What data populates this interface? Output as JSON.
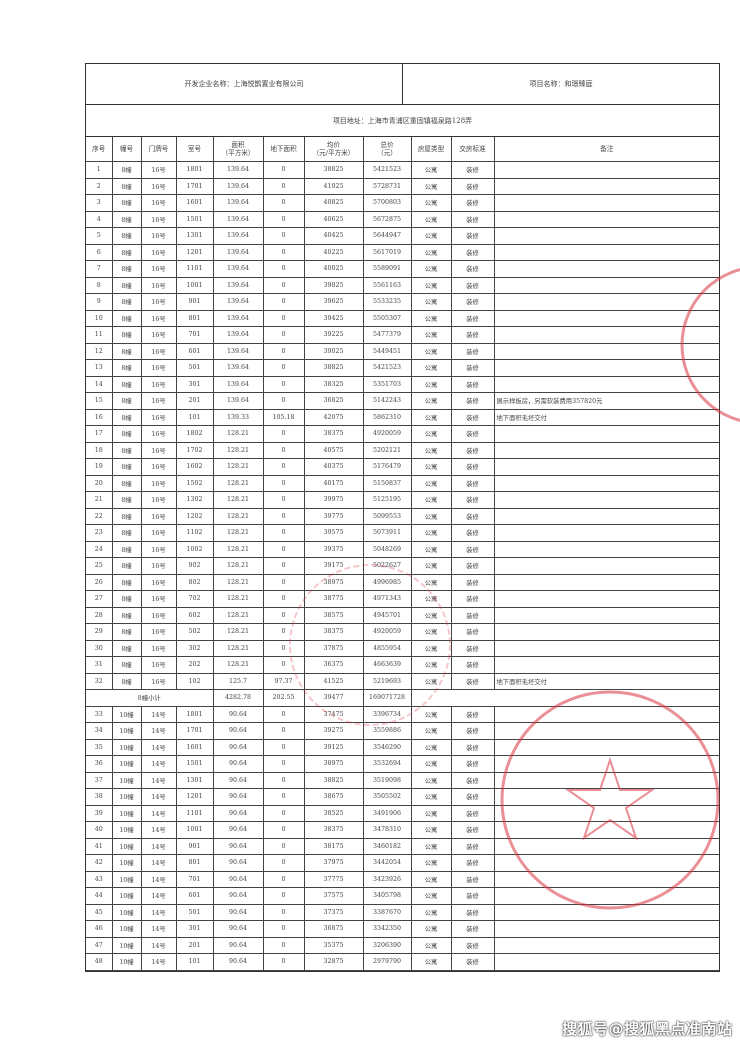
{
  "header": {
    "developer": "开发企业名称：上海悦鹊置业有限公司",
    "project_name": "项目名称：和璟臻庭",
    "address": "项目地址：上海市青浦区重固镇福泉路128弄"
  },
  "columns": [
    "序号",
    "幢号",
    "门牌号",
    "室号",
    "面积\n（平方米）",
    "地下面积",
    "均价\n（元/平方米）",
    "总价\n（元）",
    "房屋类型",
    "交房标准",
    "备注"
  ],
  "rows_a": [
    [
      "1",
      "8幢",
      "16号",
      "1801",
      "139.64",
      "0",
      "38825",
      "5421523",
      "公寓",
      "装修",
      ""
    ],
    [
      "2",
      "8幢",
      "16号",
      "1701",
      "139.64",
      "0",
      "41025",
      "5728731",
      "公寓",
      "装修",
      ""
    ],
    [
      "3",
      "8幢",
      "16号",
      "1601",
      "139.64",
      "0",
      "40825",
      "5700803",
      "公寓",
      "装修",
      ""
    ],
    [
      "4",
      "8幢",
      "16号",
      "1501",
      "139.64",
      "0",
      "40625",
      "5672875",
      "公寓",
      "装修",
      ""
    ],
    [
      "5",
      "8幢",
      "16号",
      "1301",
      "139.64",
      "0",
      "40425",
      "5644947",
      "公寓",
      "装修",
      ""
    ],
    [
      "6",
      "8幢",
      "16号",
      "1201",
      "139.64",
      "0",
      "40225",
      "5617019",
      "公寓",
      "装修",
      ""
    ],
    [
      "7",
      "8幢",
      "16号",
      "1101",
      "139.64",
      "0",
      "40025",
      "5589091",
      "公寓",
      "装修",
      ""
    ],
    [
      "8",
      "8幢",
      "16号",
      "1001",
      "139.64",
      "0",
      "39825",
      "5561163",
      "公寓",
      "装修",
      ""
    ],
    [
      "9",
      "8幢",
      "16号",
      "901",
      "139.64",
      "0",
      "39625",
      "5533235",
      "公寓",
      "装修",
      ""
    ],
    [
      "10",
      "8幢",
      "16号",
      "801",
      "139.64",
      "0",
      "39425",
      "5505307",
      "公寓",
      "装修",
      ""
    ],
    [
      "11",
      "8幢",
      "16号",
      "701",
      "139.64",
      "0",
      "39225",
      "5477379",
      "公寓",
      "装修",
      ""
    ],
    [
      "12",
      "8幢",
      "16号",
      "601",
      "139.64",
      "0",
      "39025",
      "5449451",
      "公寓",
      "装修",
      ""
    ],
    [
      "13",
      "8幢",
      "16号",
      "501",
      "139.64",
      "0",
      "38825",
      "5421523",
      "公寓",
      "装修",
      ""
    ],
    [
      "14",
      "8幢",
      "16号",
      "301",
      "139.64",
      "0",
      "38325",
      "5351703",
      "公寓",
      "装修",
      ""
    ],
    [
      "15",
      "8幢",
      "16号",
      "201",
      "139.64",
      "0",
      "36825",
      "5142243",
      "公寓",
      "装修",
      "展示样板房，另需软装费用357820元"
    ],
    [
      "16",
      "8幢",
      "16号",
      "101",
      "139.33",
      "105.18",
      "42075",
      "5862310",
      "公寓",
      "装修",
      "地下面积毛坯交付"
    ],
    [
      "17",
      "8幢",
      "16号",
      "1802",
      "128.21",
      "0",
      "38375",
      "4920059",
      "公寓",
      "装修",
      ""
    ],
    [
      "18",
      "8幢",
      "16号",
      "1702",
      "128.21",
      "0",
      "40575",
      "5202121",
      "公寓",
      "装修",
      ""
    ],
    [
      "19",
      "8幢",
      "16号",
      "1602",
      "128.21",
      "0",
      "40375",
      "5176479",
      "公寓",
      "装修",
      ""
    ],
    [
      "20",
      "8幢",
      "16号",
      "1502",
      "128.21",
      "0",
      "40175",
      "5150837",
      "公寓",
      "装修",
      ""
    ],
    [
      "21",
      "8幢",
      "16号",
      "1302",
      "128.21",
      "0",
      "39975",
      "5125195",
      "公寓",
      "装修",
      ""
    ],
    [
      "22",
      "8幢",
      "16号",
      "1202",
      "128.21",
      "0",
      "39775",
      "5099553",
      "公寓",
      "装修",
      ""
    ],
    [
      "23",
      "8幢",
      "16号",
      "1102",
      "128.21",
      "0",
      "39575",
      "5073911",
      "公寓",
      "装修",
      ""
    ],
    [
      "24",
      "8幢",
      "16号",
      "1002",
      "128.21",
      "0",
      "39375",
      "5048269",
      "公寓",
      "装修",
      ""
    ],
    [
      "25",
      "8幢",
      "16号",
      "902",
      "128.21",
      "0",
      "39175",
      "5022627",
      "公寓",
      "装修",
      ""
    ],
    [
      "26",
      "8幢",
      "16号",
      "802",
      "128.21",
      "0",
      "38975",
      "4996985",
      "公寓",
      "装修",
      ""
    ],
    [
      "27",
      "8幢",
      "16号",
      "702",
      "128.21",
      "0",
      "38775",
      "4971343",
      "公寓",
      "装修",
      ""
    ],
    [
      "28",
      "8幢",
      "16号",
      "602",
      "128.21",
      "0",
      "38575",
      "4945701",
      "公寓",
      "装修",
      ""
    ],
    [
      "29",
      "8幢",
      "16号",
      "502",
      "128.21",
      "0",
      "38375",
      "4920059",
      "公寓",
      "装修",
      ""
    ],
    [
      "30",
      "8幢",
      "16号",
      "302",
      "128.21",
      "0",
      "37875",
      "4855954",
      "公寓",
      "装修",
      ""
    ],
    [
      "31",
      "8幢",
      "16号",
      "202",
      "128.21",
      "0",
      "36375",
      "4663639",
      "公寓",
      "装修",
      ""
    ],
    [
      "32",
      "8幢",
      "16号",
      "102",
      "125.7",
      "97.37",
      "41525",
      "5219693",
      "公寓",
      "装修",
      "地下面积毛坯交付"
    ]
  ],
  "subtotal": {
    "label": "8幢小计",
    "area": "4282.78",
    "underground": "202.55",
    "avg_price": "39477",
    "total": "169071728"
  },
  "rows_b": [
    [
      "33",
      "10幢",
      "14号",
      "1801",
      "90.64",
      "0",
      "37475",
      "3396734",
      "公寓",
      "装修",
      ""
    ],
    [
      "34",
      "10幢",
      "14号",
      "1701",
      "90.64",
      "0",
      "39275",
      "3559886",
      "公寓",
      "装修",
      ""
    ],
    [
      "35",
      "10幢",
      "14号",
      "1601",
      "90.64",
      "0",
      "39125",
      "3546290",
      "公寓",
      "装修",
      ""
    ],
    [
      "36",
      "10幢",
      "14号",
      "1501",
      "90.64",
      "0",
      "38975",
      "3532694",
      "公寓",
      "装修",
      ""
    ],
    [
      "37",
      "10幢",
      "14号",
      "1301",
      "90.64",
      "0",
      "38825",
      "3519098",
      "公寓",
      "装修",
      ""
    ],
    [
      "38",
      "10幢",
      "14号",
      "1201",
      "90.64",
      "0",
      "38675",
      "3505502",
      "公寓",
      "装修",
      ""
    ],
    [
      "39",
      "10幢",
      "14号",
      "1101",
      "90.64",
      "0",
      "38525",
      "3491906",
      "公寓",
      "装修",
      ""
    ],
    [
      "40",
      "10幢",
      "14号",
      "1001",
      "90.64",
      "0",
      "38375",
      "3478310",
      "公寓",
      "装修",
      ""
    ],
    [
      "41",
      "10幢",
      "14号",
      "901",
      "90.64",
      "0",
      "38175",
      "3460182",
      "公寓",
      "装修",
      ""
    ],
    [
      "42",
      "10幢",
      "14号",
      "801",
      "90.64",
      "0",
      "37975",
      "3442054",
      "公寓",
      "装修",
      ""
    ],
    [
      "43",
      "10幢",
      "14号",
      "701",
      "90.64",
      "0",
      "37775",
      "3423926",
      "公寓",
      "装修",
      ""
    ],
    [
      "44",
      "10幢",
      "14号",
      "601",
      "90.64",
      "0",
      "37575",
      "3405798",
      "公寓",
      "装修",
      ""
    ],
    [
      "45",
      "10幢",
      "14号",
      "501",
      "90.64",
      "0",
      "37375",
      "3387670",
      "公寓",
      "装修",
      ""
    ],
    [
      "46",
      "10幢",
      "14号",
      "301",
      "90.64",
      "0",
      "36875",
      "3342350",
      "公寓",
      "装修",
      ""
    ],
    [
      "47",
      "10幢",
      "14号",
      "201",
      "90.64",
      "0",
      "35375",
      "3206390",
      "公寓",
      "装修",
      ""
    ],
    [
      "48",
      "10幢",
      "14号",
      "101",
      "90.64",
      "0",
      "32875",
      "2979790",
      "公寓",
      "装修",
      ""
    ]
  ],
  "stamp": {
    "color": "#d9343f",
    "text": "上海悦鹊置业有限公司"
  },
  "watermark": "搜狐号@搜狐黑点准南站"
}
